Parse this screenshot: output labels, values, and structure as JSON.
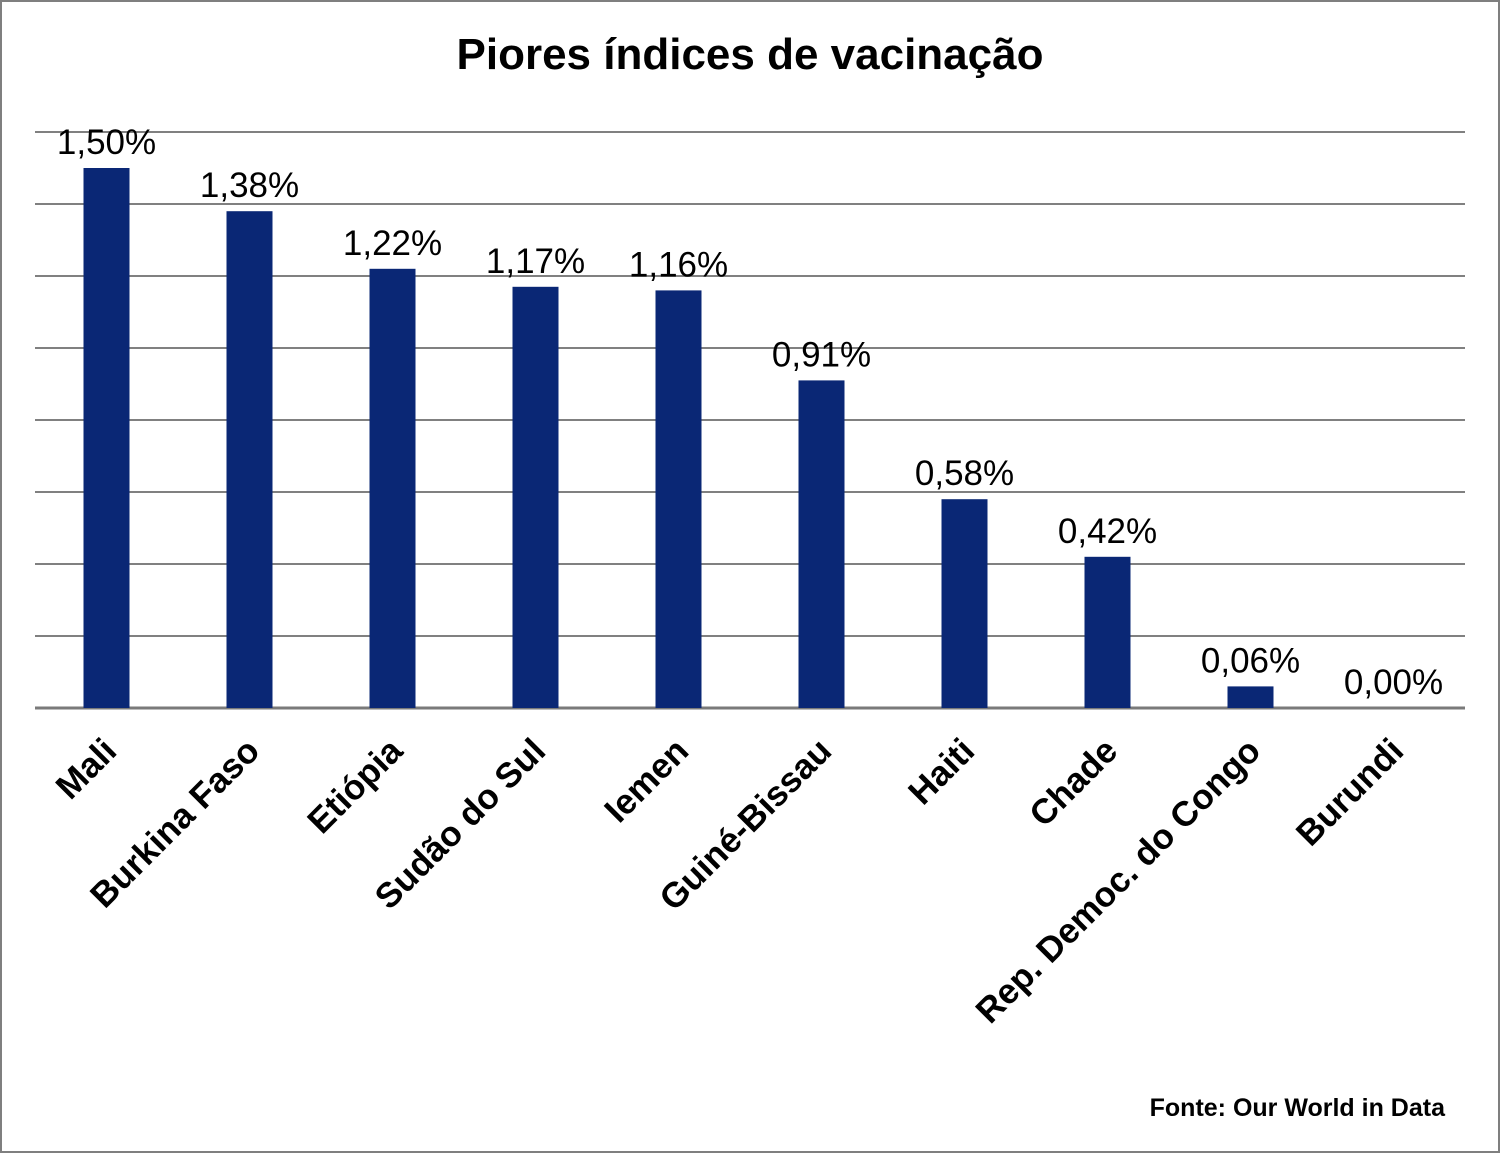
{
  "chart_data": {
    "type": "bar",
    "title": "Piores índices de vacinação",
    "categories": [
      "Mali",
      "Burkina Faso",
      "Etiópia",
      "Sudão do Sul",
      "Iemen",
      "Guiné-Bissau",
      "Haiti",
      "Chade",
      "Rep. Democ. do Congo",
      "Burundi"
    ],
    "values": [
      1.5,
      1.38,
      1.22,
      1.17,
      1.16,
      0.91,
      0.58,
      0.42,
      0.06,
      0.0
    ],
    "data_labels": [
      "1,50%",
      "1,38%",
      "1,22%",
      "1,17%",
      "1,16%",
      "0,91%",
      "0,58%",
      "0,42%",
      "0,06%",
      "0,00%"
    ],
    "unit": "%",
    "ylim": [
      0,
      1.6
    ],
    "grid": true,
    "bar_color": "#0a2775",
    "grid_color": "#808080",
    "xlabel": "",
    "ylabel": ""
  },
  "footer": {
    "source": "Fonte:  Our World in Data"
  }
}
